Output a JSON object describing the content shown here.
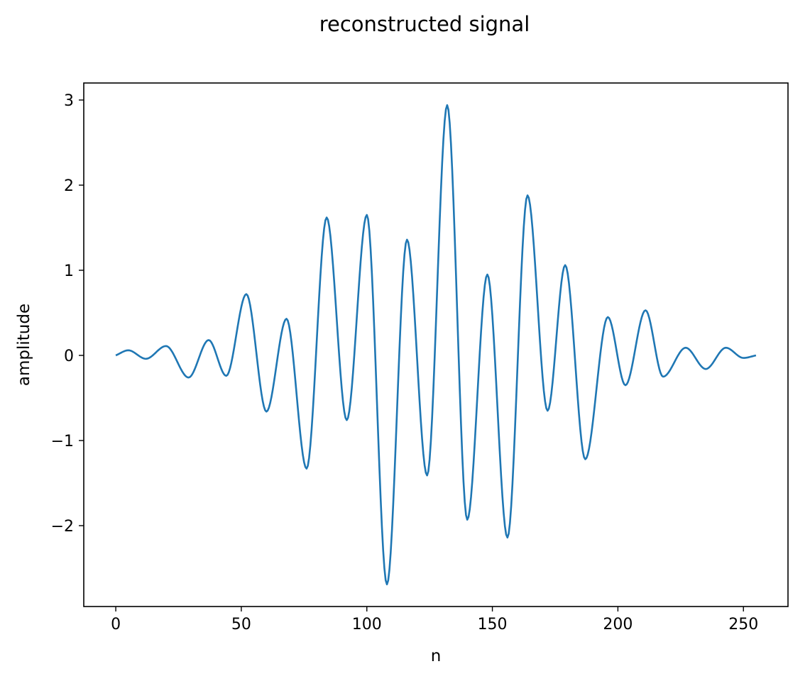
{
  "chart_data": {
    "type": "line",
    "title": "reconstructed signal",
    "xlabel": "n",
    "ylabel": "amplitude",
    "xlim": [
      -12.75,
      267.75
    ],
    "ylim": [
      -2.95,
      3.2
    ],
    "x_ticks": [
      0,
      50,
      100,
      150,
      200,
      250
    ],
    "x_tick_labels": [
      "0",
      "50",
      "100",
      "150",
      "200",
      "250"
    ],
    "y_ticks": [
      -2,
      -1,
      0,
      1,
      2,
      3
    ],
    "y_tick_labels": [
      "−2",
      "−1",
      "0",
      "1",
      "2",
      "3"
    ],
    "grid": false,
    "legend": "none",
    "series": [
      {
        "color": "#1f77b4",
        "x": [
          0,
          5,
          12,
          20,
          29,
          37,
          44,
          52,
          60,
          68,
          76,
          84,
          92,
          100,
          108,
          116,
          124,
          132,
          140,
          148,
          156,
          164,
          172,
          179,
          187,
          196,
          203,
          211,
          218,
          227,
          235,
          243,
          250,
          255
        ],
        "y": [
          0.0,
          0.06,
          -0.04,
          0.11,
          -0.26,
          0.18,
          -0.24,
          0.72,
          -0.66,
          0.43,
          -1.33,
          1.62,
          -0.76,
          1.65,
          -2.69,
          1.36,
          -1.41,
          2.94,
          -1.93,
          0.95,
          -2.14,
          1.88,
          -0.65,
          1.06,
          -1.22,
          0.45,
          -0.35,
          0.53,
          -0.25,
          0.09,
          -0.16,
          0.09,
          -0.03,
          0.0
        ]
      }
    ]
  }
}
